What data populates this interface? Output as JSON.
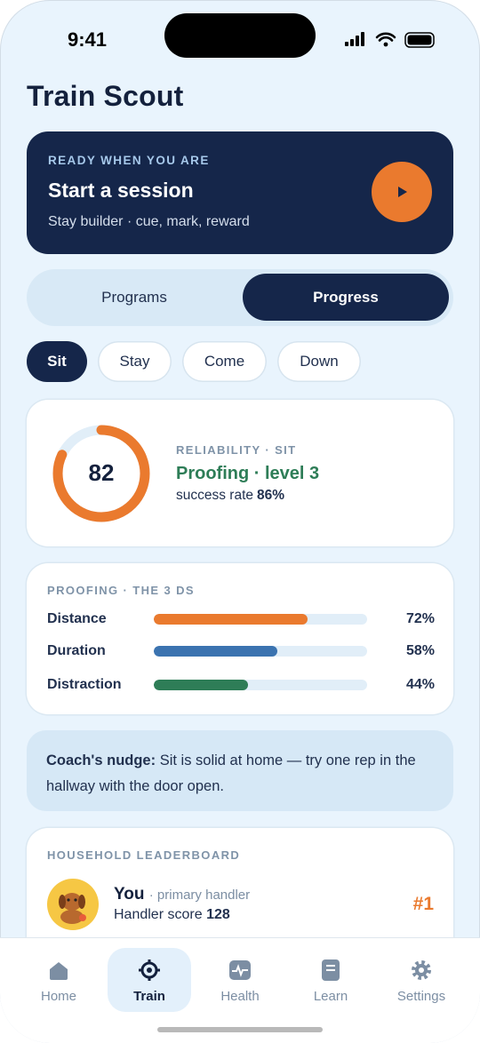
{
  "status_bar": {
    "time": "9:41"
  },
  "header": {
    "title": "Train Scout"
  },
  "session_card": {
    "eyebrow": "READY WHEN YOU ARE",
    "title": "Start a session",
    "subtitle": "Stay builder · cue, mark, reward"
  },
  "tabs": [
    {
      "label": "Programs",
      "active": false
    },
    {
      "label": "Progress",
      "active": true
    }
  ],
  "chips": [
    {
      "label": "Sit",
      "active": true
    },
    {
      "label": "Stay",
      "active": false
    },
    {
      "label": "Come",
      "active": false
    },
    {
      "label": "Down",
      "active": false
    }
  ],
  "reliability": {
    "score": 82,
    "eyebrow": "RELIABILITY · SIT",
    "stage": "Proofing · level 3",
    "rate_prefix": "success rate",
    "rate": "86%",
    "color": "#ea7a2e"
  },
  "proofing": {
    "title": "PROOFING · THE 3 DS",
    "metrics": [
      {
        "name": "Distance",
        "value": 72,
        "label": "72%",
        "color": "#ea7a2e"
      },
      {
        "name": "Duration",
        "value": 58,
        "label": "58%",
        "color": "#3b73b0"
      },
      {
        "name": "Distraction",
        "value": 44,
        "label": "44%",
        "color": "#2e7d57"
      }
    ]
  },
  "nudge": {
    "lead": "Coach's nudge:",
    "text": "Sit is solid at home — try one rep in the hallway with the door open."
  },
  "leaderboard": {
    "title": "HOUSEHOLD LEADERBOARD",
    "entries": [
      {
        "name": "You",
        "role": "· primary handler",
        "score_prefix": "Handler score",
        "score": "128",
        "rank": "#1"
      }
    ]
  },
  "nav": [
    {
      "label": "Home",
      "active": false
    },
    {
      "label": "Train",
      "active": true
    },
    {
      "label": "Health",
      "active": false
    },
    {
      "label": "Learn",
      "active": false
    },
    {
      "label": "Settings",
      "active": false
    }
  ]
}
